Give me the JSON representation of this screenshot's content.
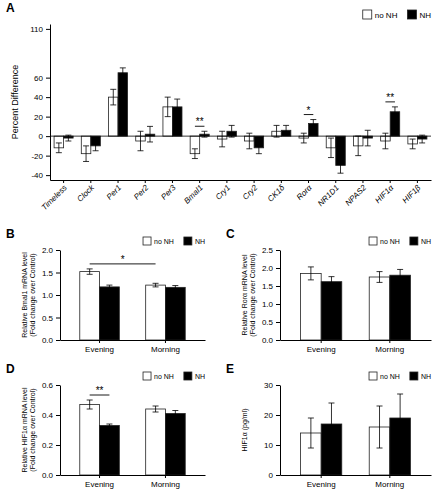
{
  "chart_data": [
    {
      "type": "bar",
      "title": "A",
      "categories": [
        "Timeless",
        "Clock",
        "Per1",
        "Per2",
        "Per3",
        "Bmal1",
        "Cry1",
        "Cry2",
        "CK1δ",
        "Rorα",
        "NR1D1",
        "NPAS2",
        "HIF1α",
        "HIF1β"
      ],
      "series": [
        {
          "name": "no NH",
          "color": "#ffffff",
          "values": [
            -12,
            -18,
            40,
            -5,
            30,
            -18,
            -3,
            -5,
            5,
            -2,
            -12,
            -10,
            -5,
            -8
          ],
          "errors": [
            5,
            8,
            8,
            10,
            10,
            5,
            8,
            8,
            6,
            5,
            10,
            10,
            8,
            5
          ]
        },
        {
          "name": "NH",
          "color": "#000000",
          "values": [
            -2,
            -10,
            65,
            2,
            30,
            2,
            5,
            -12,
            6,
            13,
            -30,
            -2,
            25,
            -3
          ],
          "errors": [
            3,
            5,
            5,
            8,
            8,
            3,
            6,
            6,
            5,
            4,
            8,
            8,
            5,
            4
          ]
        }
      ],
      "ylabel": "Percent Difference",
      "ylim": [
        -45,
        115
      ],
      "yticks": [
        -40,
        -20,
        0,
        20,
        40,
        60,
        110
      ],
      "grid": false,
      "legend": "upper right",
      "annotations": [
        {
          "text": "**",
          "from": {
            "category": "Bmal1",
            "series": "no NH"
          },
          "to": {
            "category": "Bmal1",
            "series": "NH"
          }
        },
        {
          "text": "*",
          "from": {
            "category": "Rorα",
            "series": "no NH"
          },
          "to": {
            "category": "Rorα",
            "series": "NH"
          }
        },
        {
          "text": "**",
          "from": {
            "category": "HIF1α",
            "series": "no NH"
          },
          "to": {
            "category": "HIF1α",
            "series": "NH"
          }
        }
      ]
    },
    {
      "type": "bar",
      "title": "B",
      "categories": [
        "Evening",
        "Morning"
      ],
      "series": [
        {
          "name": "no NH",
          "color": "#ffffff",
          "values": [
            1.52,
            1.22
          ],
          "errors": [
            0.06,
            0.04
          ]
        },
        {
          "name": "NH",
          "color": "#000000",
          "values": [
            1.18,
            1.17
          ],
          "errors": [
            0.04,
            0.04
          ]
        }
      ],
      "ylabel": "Relative Bmal1 mRNA level\n(Fold change over Control)",
      "ylim": [
        0,
        2.0
      ],
      "yticks": [
        {
          "value": 0,
          "label": "0.0"
        },
        0.5,
        {
          "value": 1,
          "label": "1.0"
        },
        1.5,
        {
          "value": 2,
          "label": "2.0"
        }
      ],
      "grid": false,
      "legend": "upper right",
      "annotations": [
        {
          "text": "*",
          "from": {
            "category": "Evening",
            "series": "no NH"
          },
          "to": {
            "category": "Morning",
            "series": "no NH"
          }
        }
      ]
    },
    {
      "type": "bar",
      "title": "C",
      "categories": [
        "Evening",
        "Morning"
      ],
      "series": [
        {
          "name": "no NH",
          "color": "#ffffff",
          "values": [
            1.85,
            1.75
          ],
          "errors": [
            0.18,
            0.15
          ]
        },
        {
          "name": "NH",
          "color": "#000000",
          "values": [
            1.62,
            1.8
          ],
          "errors": [
            0.14,
            0.16
          ]
        }
      ],
      "ylabel": "Relative Rorα mRNA level\n(Fold change over Control)",
      "ylim": [
        0,
        2.5
      ],
      "yticks": [
        {
          "value": 0,
          "label": "0.0"
        },
        0.5,
        {
          "value": 1,
          "label": "1.0"
        },
        1.5,
        {
          "value": 2,
          "label": "2.0"
        },
        2.5
      ],
      "grid": false,
      "legend": "upper right"
    },
    {
      "type": "bar",
      "title": "D",
      "categories": [
        "Evening",
        "Morning"
      ],
      "series": [
        {
          "name": "no NH",
          "color": "#ffffff",
          "values": [
            0.47,
            0.44
          ],
          "errors": [
            0.03,
            0.02
          ]
        },
        {
          "name": "NH",
          "color": "#000000",
          "values": [
            0.33,
            0.41
          ],
          "errors": [
            0.01,
            0.02
          ]
        }
      ],
      "ylabel": "Relative HIF1α mRNA level\n(Fold change over Control)",
      "ylim": [
        0,
        0.6
      ],
      "yticks": [
        {
          "value": 0,
          "label": "0.0"
        },
        0.2,
        0.4,
        0.6
      ],
      "grid": false,
      "legend": "upper right",
      "annotations": [
        {
          "text": "**",
          "from": {
            "category": "Evening",
            "series": "no NH"
          },
          "to": {
            "category": "Evening",
            "series": "NH"
          }
        }
      ]
    },
    {
      "type": "bar",
      "title": "E",
      "categories": [
        "Evening",
        "Morning"
      ],
      "series": [
        {
          "name": "no NH",
          "color": "#ffffff",
          "values": [
            14,
            16
          ],
          "errors": [
            5,
            7
          ]
        },
        {
          "name": "NH",
          "color": "#000000",
          "values": [
            17,
            19
          ],
          "errors": [
            7,
            8
          ]
        }
      ],
      "ylabel": "HIF1α (pg/ml)",
      "ylim": [
        0,
        30
      ],
      "yticks": [
        0,
        10,
        20,
        30
      ],
      "grid": false,
      "legend": "upper right"
    }
  ]
}
